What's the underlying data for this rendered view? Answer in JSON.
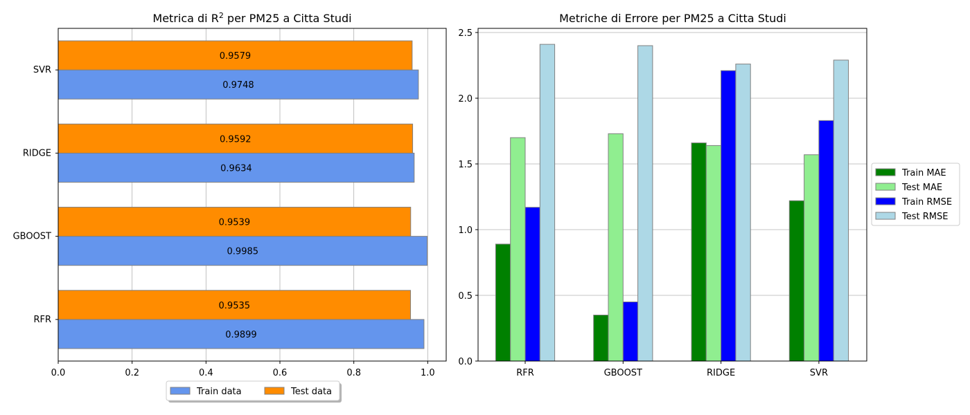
{
  "chart_data": [
    {
      "type": "bar",
      "orientation": "horizontal",
      "title": "Metrica di R",
      "title_superscript": "2",
      "title_suffix": " per PM25 a Citta Studi",
      "categories": [
        "RFR",
        "GBOOST",
        "RIDGE",
        "SVR"
      ],
      "series": [
        {
          "name": "Train data",
          "color": "#6495ED",
          "values": [
            0.9899,
            0.9985,
            0.9634,
            0.9748
          ],
          "labels": [
            "0.9899",
            "0.9985",
            "0.9634",
            "0.9748"
          ]
        },
        {
          "name": "Test data",
          "color": "#FF8C00",
          "values": [
            0.9535,
            0.9539,
            0.9592,
            0.9579
          ],
          "labels": [
            "0.9535",
            "0.9539",
            "0.9592",
            "0.9579"
          ]
        }
      ],
      "xlim": [
        0,
        1.05
      ],
      "xticks": [
        "0.0",
        "0.2",
        "0.4",
        "0.6",
        "0.8",
        "1.0"
      ],
      "grid": true,
      "legend_placement": "bottom-center"
    },
    {
      "type": "bar",
      "orientation": "vertical",
      "title": "Metriche di Errore per PM25 a Citta Studi",
      "categories": [
        "RFR",
        "GBOOST",
        "RIDGE",
        "SVR"
      ],
      "series": [
        {
          "name": "Train MAE",
          "color": "#008000",
          "values": [
            0.89,
            0.35,
            1.66,
            1.22
          ]
        },
        {
          "name": "Test MAE",
          "color": "#90EE90",
          "values": [
            1.7,
            1.73,
            1.64,
            1.57
          ]
        },
        {
          "name": "Train RMSE",
          "color": "#0000FF",
          "values": [
            1.17,
            0.45,
            2.21,
            1.83
          ]
        },
        {
          "name": "Test RMSE",
          "color": "#ADD8E6",
          "values": [
            2.41,
            2.4,
            2.26,
            2.29
          ]
        }
      ],
      "ylim": [
        0,
        2.5
      ],
      "yticks": [
        "0.0",
        "0.5",
        "1.0",
        "1.5",
        "2.0",
        "2.5"
      ],
      "grid": true,
      "legend_placement": "right-outside"
    }
  ]
}
